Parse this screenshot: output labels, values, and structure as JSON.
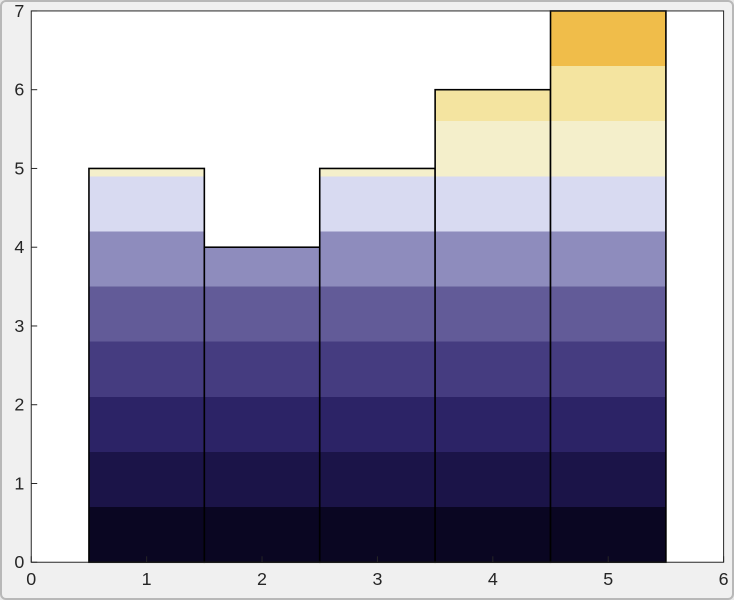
{
  "figure": {
    "background": "#f0f0f0",
    "plot_background": "#ffffff",
    "axis_color": "#262626",
    "box_on": true
  },
  "chart_data": {
    "type": "bar",
    "x": [
      1,
      2,
      3,
      4,
      5
    ],
    "values": [
      5,
      4,
      5,
      6,
      7
    ],
    "bar_width": 1,
    "xlim": [
      0,
      6
    ],
    "ylim": [
      0,
      7
    ],
    "xticks": [
      0,
      1,
      2,
      3,
      4,
      5,
      6
    ],
    "yticks": [
      0,
      1,
      2,
      3,
      4,
      5,
      6,
      7
    ],
    "grid": false,
    "legend": null,
    "bar_edge_color": "#000000",
    "bar_edge_width": 1.6,
    "color_bands": {
      "band_height": 0.7,
      "colors": [
        "#0a0622",
        "#1b1448",
        "#2c2366",
        "#453c80",
        "#625b98",
        "#8e8cbd",
        "#d8daf1",
        "#f4efcb",
        "#f4e4a0",
        "#f0bd4a"
      ]
    }
  }
}
